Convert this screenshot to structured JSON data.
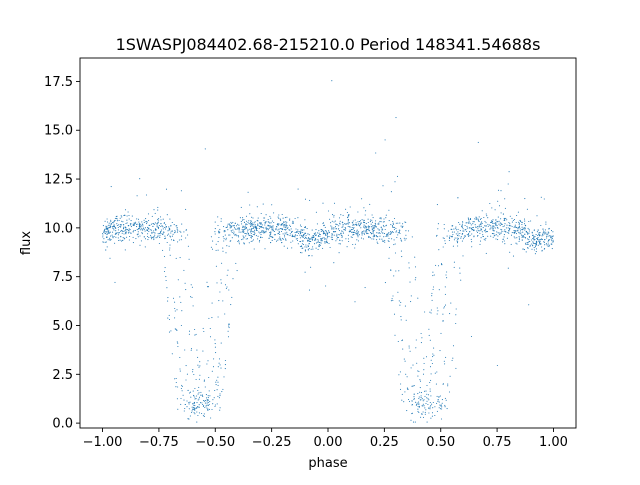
{
  "chart_data": {
    "type": "scatter",
    "title": "1SWASPJ084402.68-215210.0 Period 148341.54688s",
    "xlabel": "phase",
    "ylabel": "flux",
    "xlim": [
      -1.1,
      1.1
    ],
    "ylim": [
      -0.25,
      18.7
    ],
    "xticks": [
      -1.0,
      -0.75,
      -0.5,
      -0.25,
      0.0,
      0.25,
      0.5,
      0.75,
      1.0
    ],
    "xtick_labels": [
      "−1.00",
      "−0.75",
      "−0.50",
      "−0.25",
      "0.00",
      "0.25",
      "0.50",
      "0.75",
      "1.00"
    ],
    "yticks": [
      0.0,
      2.5,
      5.0,
      7.5,
      10.0,
      12.5,
      15.0,
      17.5
    ],
    "ytick_labels": [
      "0.0",
      "2.5",
      "5.0",
      "7.5",
      "10.0",
      "12.5",
      "15.0",
      "17.5"
    ],
    "grid": false,
    "marker_color": "#1f77b4",
    "baseline_flux": 10.0,
    "x_range": [
      -1.0,
      1.0
    ],
    "eclipse_phases": [
      -0.57,
      0.43
    ],
    "eclipse_min_flux": 1.3,
    "secondary_dip_phases": [
      -0.07,
      0.93
    ],
    "secondary_dip_flux": 9.4
  }
}
